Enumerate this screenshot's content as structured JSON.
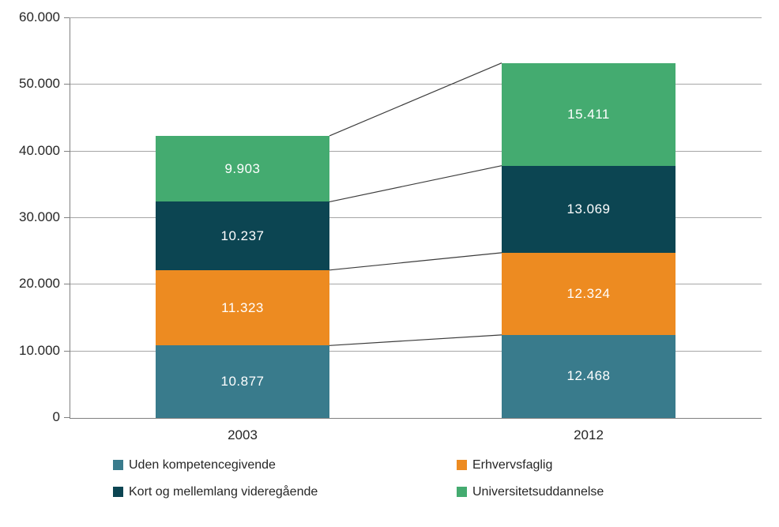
{
  "chart_data": {
    "type": "bar",
    "subtype": "stacked-column",
    "title": "",
    "xlabel": "",
    "ylabel": "",
    "categories": [
      "2003",
      "2012"
    ],
    "series": [
      {
        "name": "Uden kompetencegivende",
        "color": "#397B8C",
        "values": [
          10877,
          12468
        ],
        "labels": [
          "10.877",
          "12.468"
        ]
      },
      {
        "name": "Erhvervsfaglig",
        "color": "#ED8B21",
        "values": [
          11323,
          12324
        ],
        "labels": [
          "11.323",
          "12.324"
        ]
      },
      {
        "name": "Kort og mellemlang videregående",
        "color": "#0C4552",
        "values": [
          10237,
          13069
        ],
        "labels": [
          "10.237",
          "13.069"
        ]
      },
      {
        "name": "Universitetsuddannelse",
        "color": "#44AB70",
        "values": [
          9903,
          15411
        ],
        "labels": [
          "9.903",
          "15.411"
        ]
      }
    ],
    "totals": [
      42340,
      53272
    ],
    "ylim": [
      0,
      60000
    ],
    "ytick_step": 10000,
    "ytick_labels": [
      "0",
      "10.000",
      "20.000",
      "30.000",
      "40.000",
      "50.000",
      "60.000"
    ],
    "grid": true,
    "legend_position": "bottom-two-columns",
    "legend_order": [
      "Uden kompetencegivende",
      "Erhvervsfaglig",
      "Kort og mellemlang videregående",
      "Universitetsuddannelse"
    ],
    "connector_lines": true
  },
  "colors": {
    "value_label": "#FFFFFF",
    "gridline": "#A6A6A6",
    "axis": "#808080",
    "connector": "#3C3C3C",
    "axis_text": "#262626",
    "background": "#FFFFFF"
  }
}
